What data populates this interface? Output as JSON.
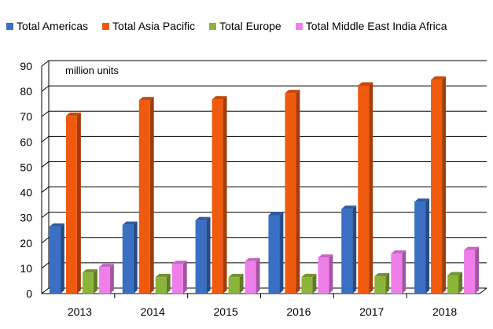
{
  "chart_data": {
    "type": "bar",
    "title": "",
    "unit_note": "million units",
    "xlabel": "",
    "ylabel": "",
    "ylim": [
      0,
      90
    ],
    "yticks": [
      0,
      10,
      20,
      30,
      40,
      50,
      60,
      70,
      80,
      90
    ],
    "grid": true,
    "legend_position": "top",
    "categories": [
      "2013",
      "2014",
      "2015",
      "2016",
      "2017",
      "2018"
    ],
    "series": [
      {
        "name": "Total Americas",
        "color": "#3A6FC4",
        "values": [
          26.5,
          27.2,
          29,
          31,
          33.5,
          36.3
        ]
      },
      {
        "name": "Total Asia Pacific",
        "color": "#F05A0F",
        "values": [
          70.3,
          76.5,
          76.8,
          79.3,
          82.3,
          84.6
        ]
      },
      {
        "name": "Total Europe",
        "color": "#8DB43A",
        "values": [
          8.3,
          6.5,
          6.5,
          6.5,
          6.8,
          7.2
        ]
      },
      {
        "name": "Total Middle East India Africa",
        "color": "#F07EEA",
        "values": [
          10.5,
          11.7,
          12.8,
          14.2,
          15.8,
          17.2
        ]
      }
    ]
  }
}
